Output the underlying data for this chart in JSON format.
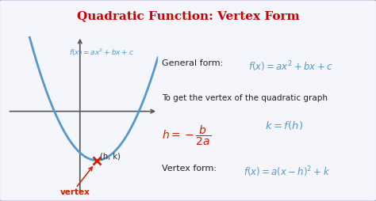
{
  "title": "Quadratic Function: Vertex Form",
  "title_color": "#cc0000",
  "title_fontsize": 11,
  "bg_color": "#f5f5fc",
  "border_color": "#c0a8d0",
  "parabola_color": "#5599cc",
  "axis_color": "#555555",
  "general_form_label": "General form:",
  "general_form_eq": "$f(x) = ax^2 + bx + c$",
  "middle_text": "To get the vertex of the quadratic graph",
  "vertex_eq_h": "$h = -\\dfrac{b}{2a}$",
  "vertex_eq_k": "$k = f(h)$",
  "vertex_form_label": "Vertex form:",
  "vertex_form_eq": "$f(x) = a(x - h)^2 + k$",
  "parabola_label": "$f(x) = ax^2 + bx + c$",
  "hk_label": "(h, k)",
  "vertex_label": "vertex",
  "red_color": "#cc2200",
  "blue_eq_color": "#5599cc",
  "dark_text_color": "#222222"
}
